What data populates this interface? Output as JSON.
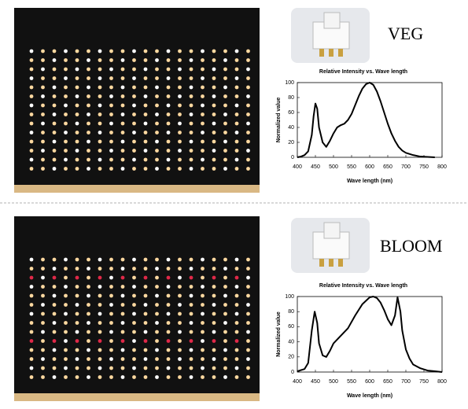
{
  "labels": [
    "VEG",
    "BLOOM"
  ],
  "chart_data": [
    {
      "type": "line",
      "title": "Relative Intensity vs. Wave length",
      "x_label": "Wave length (nm)",
      "y_label": "Normalized value",
      "color": "#000000",
      "x": [
        400,
        410,
        420,
        430,
        440,
        445,
        450,
        455,
        460,
        470,
        480,
        490,
        500,
        510,
        520,
        530,
        540,
        550,
        560,
        570,
        580,
        590,
        600,
        610,
        620,
        630,
        640,
        650,
        660,
        670,
        680,
        690,
        700,
        720,
        740,
        760,
        780
      ],
      "values": [
        0,
        1,
        3,
        8,
        30,
        55,
        72,
        65,
        40,
        20,
        14,
        22,
        32,
        40,
        43,
        45,
        50,
        58,
        70,
        82,
        92,
        98,
        100,
        97,
        88,
        75,
        60,
        45,
        32,
        22,
        14,
        9,
        6,
        3,
        1,
        0.5,
        0
      ],
      "xlim": [
        400,
        800
      ],
      "ylim": [
        0,
        100
      ],
      "xticks": [
        400,
        450,
        500,
        550,
        600,
        650,
        700,
        750,
        800
      ],
      "yticks": [
        0,
        20,
        40,
        60,
        80,
        100
      ]
    },
    {
      "type": "line",
      "title": "Relative Intensity vs. Wave length",
      "x_label": "Wave length (nm)",
      "y_label": "Normalized value",
      "color": "#000000",
      "x": [
        400,
        420,
        430,
        440,
        448,
        455,
        460,
        470,
        480,
        490,
        500,
        520,
        540,
        560,
        580,
        600,
        610,
        620,
        630,
        640,
        650,
        660,
        670,
        677,
        685,
        690,
        700,
        710,
        720,
        740,
        760,
        780,
        800
      ],
      "values": [
        1,
        4,
        12,
        55,
        80,
        65,
        38,
        22,
        20,
        28,
        38,
        48,
        58,
        75,
        90,
        99,
        100,
        98,
        92,
        82,
        70,
        62,
        75,
        99,
        80,
        55,
        30,
        18,
        10,
        5,
        2,
        1,
        0
      ],
      "xlim": [
        400,
        800
      ],
      "ylim": [
        0,
        100
      ],
      "xticks": [
        400,
        450,
        500,
        550,
        600,
        650,
        700,
        750,
        800
      ],
      "yticks": [
        0,
        20,
        40,
        60,
        80,
        100
      ]
    }
  ]
}
